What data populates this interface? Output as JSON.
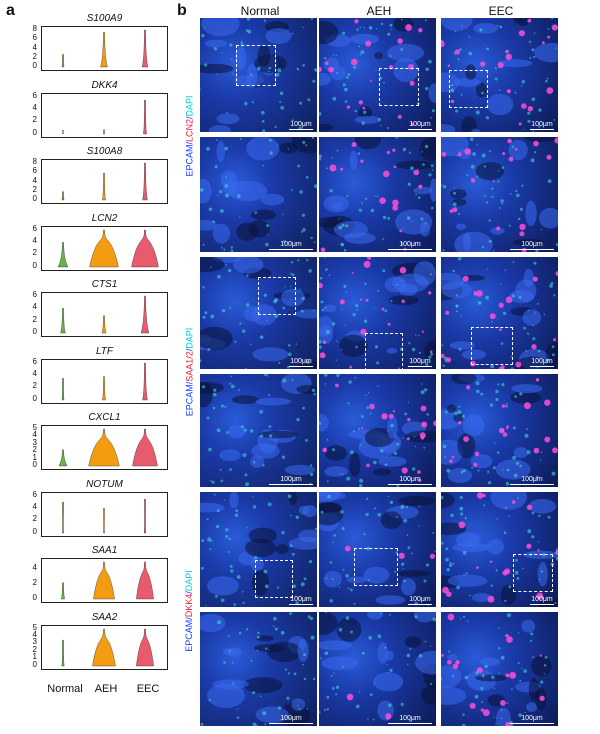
{
  "panel_a": {
    "letter": "a",
    "x_groups": [
      "Normal",
      "AEH",
      "EEC"
    ],
    "group_colors": {
      "Normal": "#6ab04c",
      "AEH": "#f39c12",
      "EEC": "#e85a6e"
    },
    "genes": [
      {
        "name": "S100A9",
        "yticks": [
          "8",
          "6",
          "4",
          "2",
          "0"
        ],
        "ymax": 8,
        "tall": [
          3,
          1.2,
          1.4
        ],
        "wide": [
          0.05,
          0.18,
          0.15
        ],
        "spike": [
          2.7,
          7.5,
          8
        ]
      },
      {
        "name": "DKK4",
        "yticks": [
          "6",
          "4",
          "2",
          "0"
        ],
        "ymax": 6,
        "tall": [
          0.6,
          0.7,
          5.5
        ],
        "wide": [
          0.02,
          0.03,
          0.08
        ],
        "spike": [
          0.6,
          0.7,
          5.5
        ]
      },
      {
        "name": "S100A8",
        "yticks": [
          "8",
          "6",
          "4",
          "2",
          "0"
        ],
        "ymax": 8,
        "tall": [
          2,
          6,
          8
        ],
        "wide": [
          0.05,
          0.08,
          0.12
        ],
        "spike": [
          1.8,
          5.8,
          8
        ]
      },
      {
        "name": "LCN2",
        "yticks": [
          "6",
          "4",
          "2",
          "0"
        ],
        "ymax": 6,
        "tall": [
          4,
          6,
          6
        ],
        "wide": [
          0.25,
          0.75,
          0.7
        ],
        "spike": [
          4,
          6,
          6
        ]
      },
      {
        "name": "CTS1",
        "yticks": [
          "6",
          "4",
          "2",
          "0"
        ],
        "ymax": 6,
        "tall": [
          4,
          2.8,
          6
        ],
        "wide": [
          0.12,
          0.1,
          0.2
        ],
        "spike": [
          4,
          2.8,
          6
        ]
      },
      {
        "name": "LTF",
        "yticks": [
          "6",
          "4",
          "2",
          "0"
        ],
        "ymax": 6,
        "tall": [
          3.5,
          3.8,
          6
        ],
        "wide": [
          0.05,
          0.08,
          0.12
        ],
        "spike": [
          3.5,
          3.8,
          6
        ]
      },
      {
        "name": "CXCL1",
        "yticks": [
          "5",
          "4",
          "3",
          "2",
          "1",
          "0"
        ],
        "ymax": 5,
        "tall": [
          2.2,
          5,
          5
        ],
        "wide": [
          0.2,
          0.8,
          0.65
        ],
        "spike": [
          2.2,
          5,
          5
        ]
      },
      {
        "name": "NOTUM",
        "yticks": [
          "6",
          "4",
          "2",
          "0"
        ],
        "ymax": 6,
        "tall": [
          5,
          4,
          5.5
        ],
        "wide": [
          0.03,
          0.03,
          0.04
        ],
        "spike": [
          5,
          4,
          5.5
        ]
      },
      {
        "name": "SAA1",
        "yticks": [
          "4",
          "2",
          "0"
        ],
        "ymax": 5,
        "tall": [
          2.2,
          5,
          5
        ],
        "wide": [
          0.08,
          0.55,
          0.45
        ],
        "spike": [
          2.2,
          5,
          5
        ]
      },
      {
        "name": "SAA2",
        "yticks": [
          "5",
          "4",
          "3",
          "2",
          "1",
          "0"
        ],
        "ymax": 5,
        "tall": [
          3.5,
          5,
          5
        ],
        "wide": [
          0.06,
          0.6,
          0.45
        ],
        "spike": [
          3.5,
          5,
          5
        ]
      }
    ]
  },
  "panel_b": {
    "letter": "b",
    "columns": [
      "Normal",
      "AEH",
      "EEC"
    ],
    "scale_label": "100μm",
    "stain_rows": [
      {
        "parts": [
          "EPCAM",
          "/",
          "LCN2",
          "/",
          "DAPI"
        ],
        "colors": [
          "#1a3cff",
          "#1a3cff",
          "#e8213a",
          "#1a3cff",
          "#10c8d8"
        ]
      },
      {
        "parts": [
          "EPCAM",
          "/",
          "SAA1/2",
          "/",
          "DAPI"
        ],
        "colors": [
          "#1a3cff",
          "#1a3cff",
          "#e8213a",
          "#1a3cff",
          "#10c8d8"
        ]
      },
      {
        "parts": [
          "EPCAM",
          "/",
          "DKK4",
          "/",
          "DAPI"
        ],
        "colors": [
          "#1a3cff",
          "#1a3cff",
          "#e8213a",
          "#1a3cff",
          "#10c8d8"
        ]
      }
    ]
  }
}
